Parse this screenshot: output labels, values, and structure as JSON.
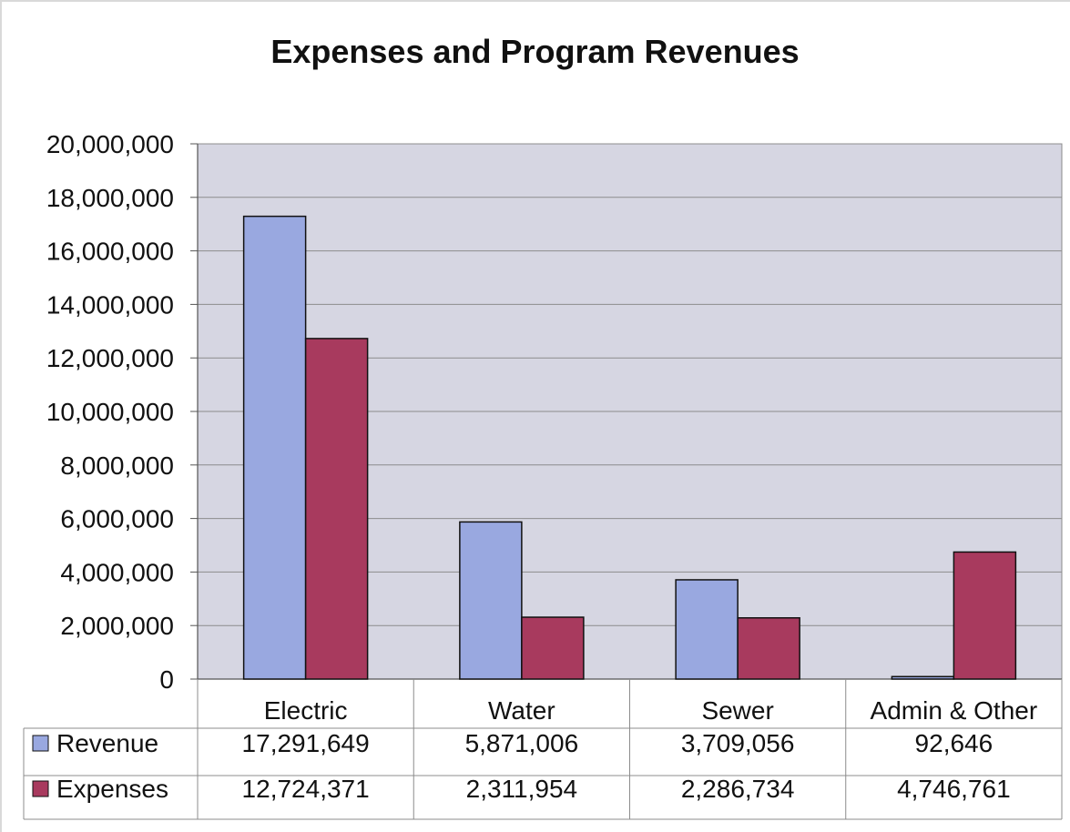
{
  "chart_data": {
    "type": "bar",
    "title": "Expenses and Program Revenues",
    "xlabel": "",
    "ylabel": "",
    "ylim": [
      0,
      20000000
    ],
    "yticks": [
      "0",
      "2,000,000",
      "4,000,000",
      "6,000,000",
      "8,000,000",
      "10,000,000",
      "12,000,000",
      "14,000,000",
      "16,000,000",
      "18,000,000",
      "20,000,000"
    ],
    "grid": true,
    "legend": "data-table-left",
    "categories": [
      "Electric",
      "Water",
      "Sewer",
      "Admin & Other"
    ],
    "series": [
      {
        "name": "Revenue",
        "color": "#99a8e0",
        "values": [
          17291649,
          5871006,
          3709056,
          92646
        ],
        "labels": [
          "17,291,649",
          "5,871,006",
          "3,709,056",
          "92,646"
        ]
      },
      {
        "name": "Expenses",
        "color": "#a83a5e",
        "values": [
          12724371,
          2311954,
          2286734,
          4746761
        ],
        "labels": [
          "12,724,371",
          "2,311,954",
          "2,286,734",
          "4,746,761"
        ]
      }
    ],
    "plot_bg": "#d6d6e2"
  }
}
